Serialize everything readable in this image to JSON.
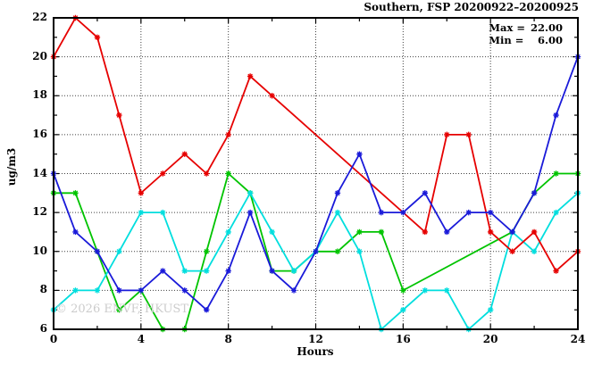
{
  "watermark": {
    "text": "© 2026 ENVF, HKUST",
    "color": "#cccccc"
  },
  "chart_data": {
    "type": "line",
    "title": "Southern, FSP 20200922–20200925",
    "xlabel": "Hours",
    "ylabel": "ug/m3",
    "xlim": [
      0,
      24
    ],
    "ylim": [
      6,
      22
    ],
    "x_tick_labels": [
      0,
      4,
      8,
      12,
      16,
      20,
      24
    ],
    "x_minor_tick_step": 2,
    "y_tick_labels": [
      6,
      8,
      10,
      12,
      14,
      16,
      18,
      20,
      22
    ],
    "y_minor_tick_step": 1,
    "grid": {
      "x_at": [
        4,
        8,
        12,
        16,
        20
      ],
      "y_at": [
        8,
        10,
        12,
        14,
        16,
        18,
        20
      ]
    },
    "legend_position": "top-right-inside",
    "annotations": {
      "max_label": "Max =",
      "max_value": "22.00",
      "min_label": "Min =",
      "min_value": "6.00"
    },
    "marker": "asterisk",
    "series": [
      {
        "name": "green",
        "color": "#00c400",
        "points": [
          [
            0,
            13
          ],
          [
            1,
            13
          ],
          [
            2,
            10
          ],
          [
            3,
            7
          ],
          [
            4,
            8
          ],
          [
            5,
            6
          ],
          [
            6,
            6
          ],
          [
            7,
            10
          ],
          [
            8,
            14
          ],
          [
            9,
            13
          ],
          [
            10,
            9
          ],
          [
            11,
            9
          ],
          [
            12,
            10
          ],
          [
            13,
            10
          ],
          [
            14,
            11
          ],
          [
            15,
            11
          ],
          [
            16,
            8
          ],
          [
            21,
            11
          ],
          [
            22,
            13
          ],
          [
            23,
            14
          ],
          [
            24,
            14
          ]
        ]
      },
      {
        "name": "cyan",
        "color": "#00dede",
        "points": [
          [
            0,
            7
          ],
          [
            1,
            8
          ],
          [
            2,
            8
          ],
          [
            3,
            10
          ],
          [
            4,
            12
          ],
          [
            5,
            12
          ],
          [
            6,
            9
          ],
          [
            7,
            9
          ],
          [
            8,
            11
          ],
          [
            9,
            13
          ],
          [
            10,
            11
          ],
          [
            11,
            9
          ],
          [
            12,
            10
          ],
          [
            13,
            12
          ],
          [
            14,
            10
          ],
          [
            15,
            6
          ],
          [
            16,
            7
          ],
          [
            17,
            8
          ],
          [
            18,
            8
          ],
          [
            19,
            6
          ],
          [
            20,
            7
          ],
          [
            21,
            11
          ],
          [
            22,
            10
          ],
          [
            23,
            12
          ],
          [
            24,
            13
          ]
        ]
      },
      {
        "name": "red",
        "color": "#e60000",
        "points": [
          [
            0,
            20
          ],
          [
            1,
            22
          ],
          [
            2,
            21
          ],
          [
            3,
            17
          ],
          [
            4,
            13
          ],
          [
            5,
            14
          ],
          [
            6,
            15
          ],
          [
            7,
            14
          ],
          [
            8,
            16
          ],
          [
            9,
            19
          ],
          [
            10,
            18
          ],
          [
            17,
            11
          ],
          [
            18,
            16
          ],
          [
            19,
            16
          ],
          [
            20,
            11
          ],
          [
            21,
            10
          ],
          [
            22,
            11
          ],
          [
            23,
            9
          ],
          [
            24,
            10
          ]
        ]
      },
      {
        "name": "blue",
        "color": "#1a1ad9",
        "points": [
          [
            0,
            14
          ],
          [
            1,
            11
          ],
          [
            2,
            10
          ],
          [
            3,
            8
          ],
          [
            4,
            8
          ],
          [
            5,
            9
          ],
          [
            6,
            8
          ],
          [
            7,
            7
          ],
          [
            8,
            9
          ],
          [
            9,
            12
          ],
          [
            10,
            9
          ],
          [
            11,
            8
          ],
          [
            12,
            10
          ],
          [
            13,
            13
          ],
          [
            14,
            15
          ],
          [
            15,
            12
          ],
          [
            16,
            12
          ],
          [
            17,
            13
          ],
          [
            18,
            11
          ],
          [
            19,
            12
          ],
          [
            20,
            12
          ],
          [
            21,
            11
          ],
          [
            22,
            13
          ],
          [
            23,
            17
          ],
          [
            24,
            20
          ]
        ]
      }
    ]
  }
}
